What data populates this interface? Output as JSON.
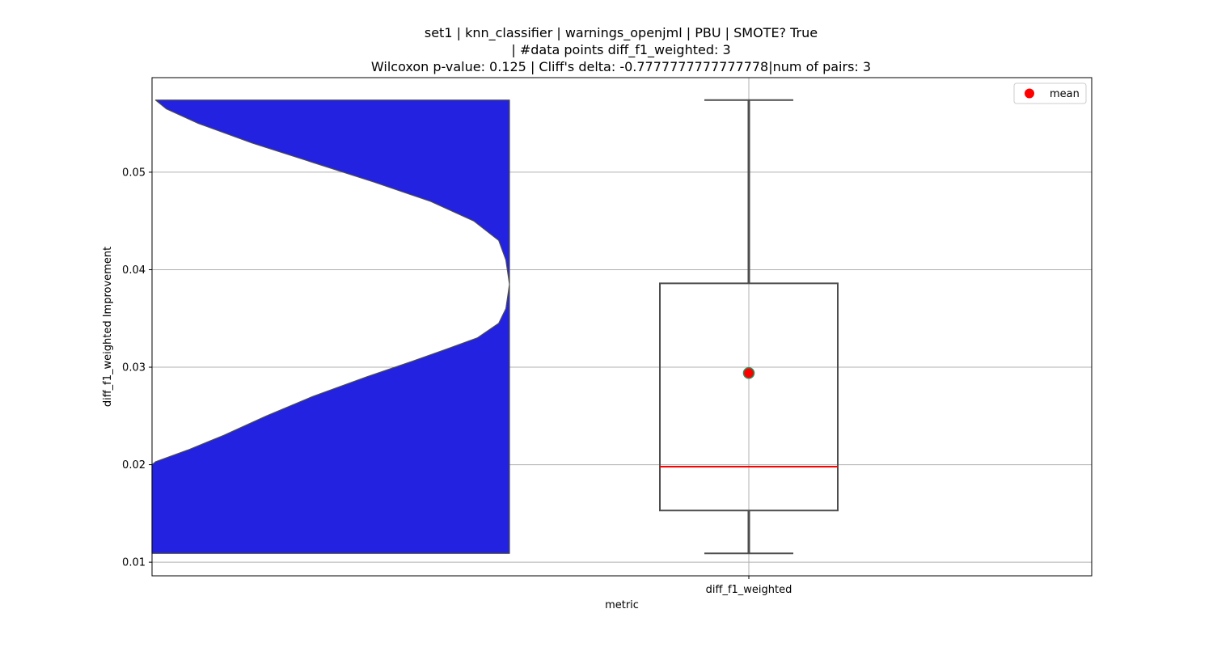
{
  "chart_data": {
    "type": "violin+box",
    "title_lines": [
      "set1 | knn_classifier | warnings_openjml | PBU | SMOTE? True",
      "| #data points diff_f1_weighted: 3",
      "Wilcoxon p-value: 0.125 | Cliff's delta: -0.7777777777777778|num of pairs: 3"
    ],
    "xlabel": "metric",
    "ylabel": "diff_f1_weighted Improvement",
    "categories": [
      "diff_f1_weighted"
    ],
    "ylim": [
      0.0086,
      0.0597
    ],
    "yticks": [
      0.01,
      0.02,
      0.03,
      0.04,
      0.05
    ],
    "ytick_labels": [
      "0.01",
      "0.02",
      "0.03",
      "0.04",
      "0.05"
    ],
    "grid": true,
    "legend": {
      "entries": [
        "mean"
      ],
      "placement": "top-right"
    },
    "box": {
      "min": 0.0109,
      "q1": 0.0153,
      "median": 0.0198,
      "q3": 0.0386,
      "max": 0.0574,
      "mean": 0.0294
    },
    "violin": {
      "y_range": [
        0.0109,
        0.0574
      ],
      "density_profile": [
        [
          0.0109,
          1.0
        ],
        [
          0.02,
          1.0
        ],
        [
          0.0203,
          0.99
        ],
        [
          0.0215,
          0.9
        ],
        [
          0.023,
          0.8
        ],
        [
          0.025,
          0.68
        ],
        [
          0.027,
          0.55
        ],
        [
          0.029,
          0.4
        ],
        [
          0.0305,
          0.28
        ],
        [
          0.0318,
          0.18
        ],
        [
          0.033,
          0.09
        ],
        [
          0.0345,
          0.03
        ],
        [
          0.036,
          0.01
        ],
        [
          0.0385,
          0.0
        ],
        [
          0.041,
          0.01
        ],
        [
          0.043,
          0.03
        ],
        [
          0.045,
          0.1
        ],
        [
          0.047,
          0.22
        ],
        [
          0.049,
          0.38
        ],
        [
          0.051,
          0.55
        ],
        [
          0.053,
          0.72
        ],
        [
          0.055,
          0.87
        ],
        [
          0.0565,
          0.96
        ],
        [
          0.0574,
          0.99
        ]
      ]
    },
    "colors": {
      "violin_fill": "#2222e0",
      "violin_edge": "#4d4d4d",
      "box_edge": "#4d4d4d",
      "median": "#ff0000",
      "mean_marker": "#ff0000",
      "mean_edge": "#2e8b57",
      "grid": "#b0b0b0"
    }
  }
}
